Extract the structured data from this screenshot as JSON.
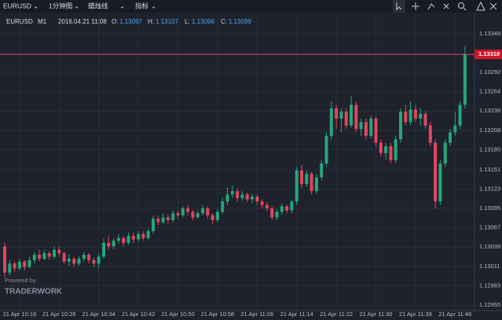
{
  "toolbar": {
    "symbol": "EURUSD",
    "timeframe": "1分钟图",
    "chart_style": "蜡烛线",
    "indicators": "指标"
  },
  "chart_data": {
    "type": "candlestick",
    "legend": {
      "symbol": "EURUSD",
      "period": "M1",
      "time": "2016.04.21 11:08",
      "o_label": "O:",
      "o": 1.13097,
      "h_label": "H:",
      "h": 1.13107,
      "l_label": "L:",
      "l": 1.13096,
      "c_label": "C:",
      "c": 1.13099
    },
    "watermark": {
      "line1": "Powered by",
      "line2": "TRADERWORK"
    },
    "up_color": "#26a67a",
    "down_color": "#e0475f",
    "grid": true,
    "ylim": [
      1.12947,
      1.13374
    ],
    "yticks": [
      1.13348,
      1.13292,
      1.13264,
      1.13236,
      1.13208,
      {
        "value": 1.1318,
        "label": "1.13180"
      },
      1.13151,
      1.13123,
      1.13095,
      1.13067,
      1.13039,
      1.13011,
      1.12983,
      1.12955
    ],
    "xticks": [
      {
        "value": 3,
        "label": "21 Apr 10:18"
      },
      {
        "value": 11,
        "label": "21 Apr 10:26"
      },
      {
        "value": 19,
        "label": "21 Apr 10:34"
      },
      {
        "value": 27,
        "label": "21 Apr 10:42"
      },
      {
        "value": 35,
        "label": "21 Apr 10:50"
      },
      {
        "value": 43,
        "label": "21 Apr 10:58"
      },
      {
        "value": 51,
        "label": "21 Apr 11:06"
      },
      {
        "value": 59,
        "label": "21 Apr 11:14"
      },
      {
        "value": 67,
        "label": "21 Apr 11:22"
      },
      {
        "value": 75,
        "label": "21 Apr 11:30"
      },
      {
        "value": 83,
        "label": "21 Apr 11:38"
      },
      {
        "value": 91,
        "label": "21 Apr 11:46"
      }
    ],
    "open": [
      1.1304,
      1.13002,
      1.13015,
      1.13008,
      1.13018,
      1.1301,
      1.1302,
      1.13028,
      1.13022,
      1.1303,
      1.13025,
      1.13035,
      1.1303,
      1.13018,
      1.13022,
      1.13015,
      1.13022,
      1.13028,
      1.1302,
      1.13015,
      1.13025,
      1.13045,
      1.1304,
      1.13048,
      1.13052,
      1.13045,
      1.13055,
      1.1305,
      1.13058,
      1.13052,
      1.13062,
      1.1308,
      1.13075,
      1.13082,
      1.13078,
      1.13088,
      1.13085,
      1.13095,
      1.1309,
      1.13082,
      1.13088,
      1.13095,
      1.13085,
      1.13078,
      1.1309,
      1.13105,
      1.13115,
      1.1312,
      1.1311,
      1.13115,
      1.13108,
      1.13112,
      1.13105,
      1.131,
      1.13095,
      1.13082,
      1.1309,
      1.13098,
      1.13092,
      1.13105,
      1.1315,
      1.1313,
      1.13145,
      1.1312,
      1.1314,
      1.1316,
      1.132,
      1.1324,
      1.13225,
      1.13235,
      1.13215,
      1.13245,
      1.1321,
      1.1322,
      1.132,
      1.13225,
      1.1319,
      1.13175,
      1.13185,
      1.13165,
      1.13195,
      1.13235,
      1.1322,
      1.13238,
      1.13225,
      1.13232,
      1.13215,
      1.1319,
      1.13105,
      1.1316,
      1.1319,
      1.13205,
      1.13215,
      1.13245
    ],
    "high": [
      1.13045,
      1.1302,
      1.13018,
      1.13022,
      1.1302,
      1.13025,
      1.13032,
      1.13035,
      1.13034,
      1.13033,
      1.1304,
      1.1304,
      1.13033,
      1.13028,
      1.13025,
      1.13026,
      1.13032,
      1.1303,
      1.13024,
      1.1303,
      1.13052,
      1.13055,
      1.13052,
      1.13058,
      1.13055,
      1.1306,
      1.1306,
      1.13062,
      1.13062,
      1.13066,
      1.13084,
      1.13085,
      1.13088,
      1.13086,
      1.13092,
      1.13092,
      1.13098,
      1.131,
      1.13093,
      1.13092,
      1.131,
      1.13098,
      1.13088,
      1.13094,
      1.1311,
      1.13125,
      1.13128,
      1.13124,
      1.1312,
      1.13118,
      1.13116,
      1.13115,
      1.13108,
      1.13104,
      1.13098,
      1.13094,
      1.13102,
      1.131,
      1.13108,
      1.13155,
      1.13158,
      1.1315,
      1.13148,
      1.13145,
      1.13165,
      1.13205,
      1.1325,
      1.13245,
      1.1324,
      1.1324,
      1.13258,
      1.1325,
      1.13225,
      1.13225,
      1.1323,
      1.13228,
      1.13195,
      1.1319,
      1.1319,
      1.132,
      1.1324,
      1.13245,
      1.1325,
      1.13245,
      1.1324,
      1.13236,
      1.1322,
      1.13195,
      1.13165,
      1.13195,
      1.1321,
      1.13235,
      1.1325,
      1.1333
    ],
    "low": [
      1.12995,
      1.12998,
      1.13003,
      1.13005,
      1.13005,
      1.13008,
      1.13015,
      1.13018,
      1.1302,
      1.1302,
      1.13022,
      1.13025,
      1.13015,
      1.13012,
      1.1301,
      1.13012,
      1.13018,
      1.13015,
      1.1301,
      1.13008,
      1.13022,
      1.13035,
      1.13036,
      1.13044,
      1.1304,
      1.13042,
      1.13045,
      1.13046,
      1.13048,
      1.1305,
      1.13058,
      1.1307,
      1.13072,
      1.13073,
      1.13075,
      1.1308,
      1.13082,
      1.13085,
      1.13078,
      1.1308,
      1.13085,
      1.1308,
      1.13072,
      1.13075,
      1.13088,
      1.131,
      1.1311,
      1.13105,
      1.13106,
      1.13104,
      1.13102,
      1.131,
      1.13095,
      1.1309,
      1.13078,
      1.13078,
      1.13086,
      1.13088,
      1.13088,
      1.131,
      1.13125,
      1.13126,
      1.13115,
      1.13116,
      1.13136,
      1.13155,
      1.13195,
      1.1321,
      1.13205,
      1.1321,
      1.13212,
      1.13205,
      1.132,
      1.13195,
      1.13196,
      1.13185,
      1.1317,
      1.13165,
      1.1316,
      1.1316,
      1.1319,
      1.13215,
      1.13215,
      1.1322,
      1.13215,
      1.1321,
      1.13185,
      1.13095,
      1.131,
      1.13155,
      1.13185,
      1.132,
      1.1321,
      1.1324
    ],
    "close": [
      1.13002,
      1.13015,
      1.13008,
      1.13018,
      1.1301,
      1.1302,
      1.13028,
      1.13022,
      1.1303,
      1.13025,
      1.13035,
      1.1303,
      1.13018,
      1.13022,
      1.13015,
      1.13022,
      1.13028,
      1.1302,
      1.13015,
      1.13025,
      1.13045,
      1.1304,
      1.13048,
      1.13052,
      1.13045,
      1.13055,
      1.1305,
      1.13058,
      1.13052,
      1.13062,
      1.1308,
      1.13075,
      1.13082,
      1.13078,
      1.13088,
      1.13085,
      1.13095,
      1.1309,
      1.13082,
      1.13088,
      1.13095,
      1.13085,
      1.13078,
      1.1309,
      1.13105,
      1.13115,
      1.1312,
      1.1311,
      1.13115,
      1.13108,
      1.13112,
      1.13105,
      1.131,
      1.13095,
      1.13082,
      1.1309,
      1.13098,
      1.13092,
      1.13105,
      1.1315,
      1.1313,
      1.13145,
      1.1312,
      1.1314,
      1.1316,
      1.132,
      1.1324,
      1.13225,
      1.13235,
      1.13215,
      1.13245,
      1.1321,
      1.1322,
      1.132,
      1.13225,
      1.1319,
      1.13175,
      1.13185,
      1.13165,
      1.13195,
      1.13235,
      1.1322,
      1.13238,
      1.13225,
      1.13232,
      1.13215,
      1.1319,
      1.13105,
      1.1316,
      1.1319,
      1.13205,
      1.13215,
      1.13245,
      1.13318
    ]
  }
}
